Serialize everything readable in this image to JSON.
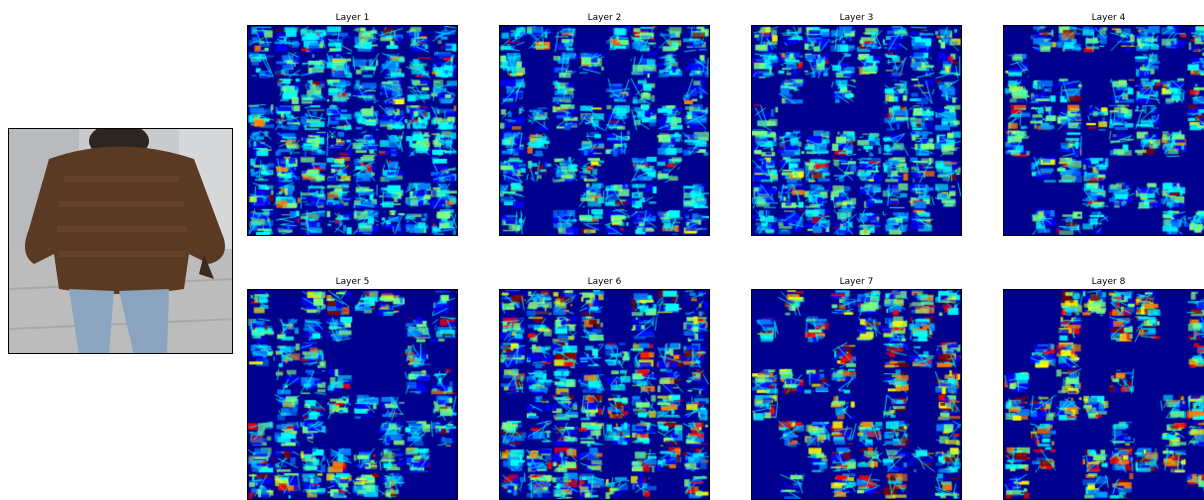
{
  "figure": {
    "input_image": {
      "description_icon": "pedestrian-photo"
    },
    "panels": [
      {
        "title": "Layer 1",
        "seed": 11,
        "hot": 0.05,
        "dark": 0.06
      },
      {
        "title": "Layer 2",
        "seed": 23,
        "hot": 0.08,
        "dark": 0.18
      },
      {
        "title": "Layer 3",
        "seed": 37,
        "hot": 0.09,
        "dark": 0.15
      },
      {
        "title": "Layer 4",
        "seed": 41,
        "hot": 0.12,
        "dark": 0.35
      },
      {
        "title": "Layer 5",
        "seed": 53,
        "hot": 0.16,
        "dark": 0.25
      },
      {
        "title": "Layer 6",
        "seed": 67,
        "hot": 0.25,
        "dark": 0.12
      },
      {
        "title": "Layer 7",
        "seed": 71,
        "hot": 0.35,
        "dark": 0.3
      },
      {
        "title": "Layer 8",
        "seed": 89,
        "hot": 0.4,
        "dark": 0.42
      }
    ],
    "colormap": [
      "#00008f",
      "#0000ff",
      "#0080ff",
      "#00ffff",
      "#80ff80",
      "#ffff00",
      "#ff8000",
      "#ff0000",
      "#800000"
    ]
  }
}
